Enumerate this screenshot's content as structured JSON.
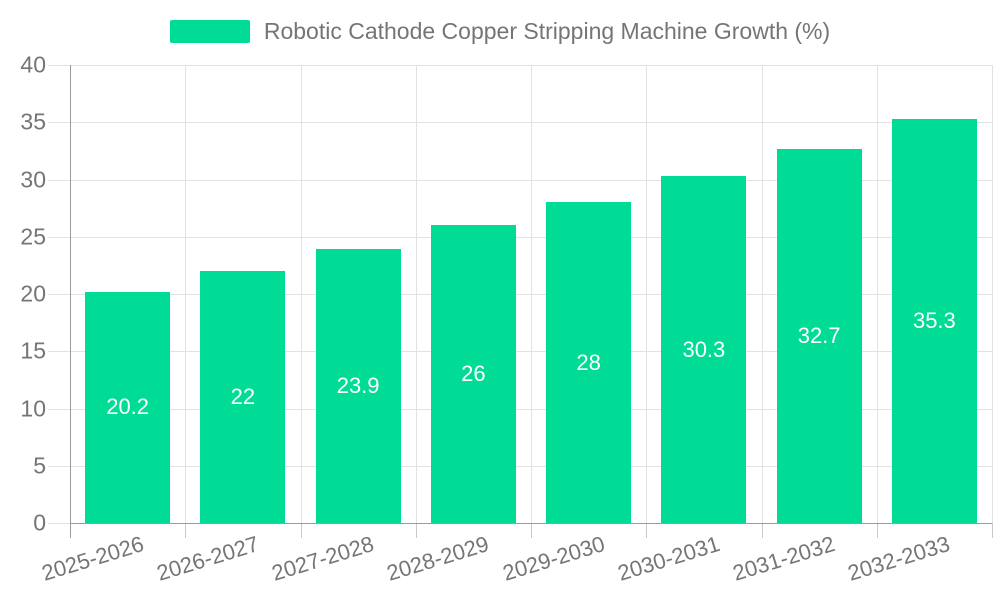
{
  "chart_data": {
    "type": "bar",
    "title": "Robotic Cathode Copper Stripping Machine Growth (%)",
    "categories": [
      "2025-2026",
      "2026-2027",
      "2027-2028",
      "2028-2029",
      "2029-2030",
      "2030-2031",
      "2031-2032",
      "2032-2033"
    ],
    "series": [
      {
        "name": "Robotic Cathode Copper Stripping Machine Growth (%)",
        "values": [
          20.2,
          22,
          23.9,
          26,
          28,
          30.3,
          32.7,
          35.3
        ]
      }
    ],
    "value_labels": [
      "20.2",
      "22",
      "23.9",
      "26",
      "28",
      "30.3",
      "32.7",
      "35.3"
    ],
    "xlabel": "",
    "ylabel": "",
    "ylim": [
      0,
      40
    ],
    "y_ticks": [
      0,
      5,
      10,
      15,
      20,
      25,
      30,
      35,
      40
    ],
    "grid": "on",
    "legend_position": "top",
    "colors": {
      "bar": "#00DC95",
      "value_label": "#ffffff",
      "axis_text": "#757575",
      "legend_text": "#757575",
      "gridline": "#e2e2e2",
      "axis_line": "#9b9b9b",
      "background": "#ffffff"
    }
  }
}
